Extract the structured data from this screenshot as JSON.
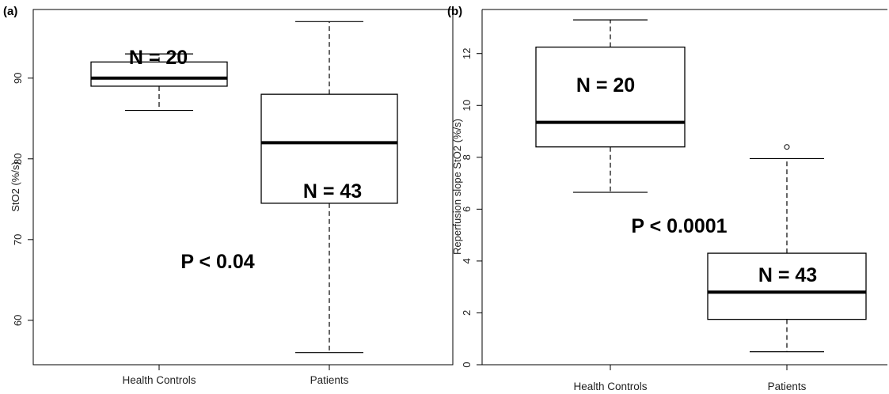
{
  "chart_data": [
    {
      "panel": "(a)",
      "type": "box",
      "ylabel": "StO2 (%/s)",
      "ylim": [
        54.5,
        98.5
      ],
      "yticks": [
        60,
        70,
        80,
        90
      ],
      "grid": false,
      "categories": [
        "Health Controls",
        "Patients"
      ],
      "boxes": [
        {
          "category": "Health Controls",
          "min": 86,
          "q1": 89,
          "median": 90,
          "q3": 92,
          "max": 93,
          "outliers": []
        },
        {
          "category": "Patients",
          "min": 56,
          "q1": 74.5,
          "median": 82,
          "q3": 88,
          "max": 97,
          "outliers": []
        }
      ],
      "annotations": [
        "N = 20",
        "N = 43",
        "P < 0.04"
      ]
    },
    {
      "panel": "(b)",
      "type": "box",
      "ylabel": "Reperfusion slope StO2 (%/s)",
      "ylim": [
        0,
        13.7
      ],
      "yticks": [
        0,
        2,
        4,
        6,
        8,
        10,
        12
      ],
      "grid": false,
      "categories": [
        "Health Controls",
        "Patients"
      ],
      "boxes": [
        {
          "category": "Health Controls",
          "min": 6.65,
          "q1": 8.4,
          "median": 9.35,
          "q3": 12.25,
          "max": 13.3,
          "outliers": []
        },
        {
          "category": "Patients",
          "min": 0.5,
          "q1": 1.75,
          "median": 2.8,
          "q3": 4.3,
          "max": 7.95,
          "outliers": [
            8.4
          ]
        }
      ],
      "annotations": [
        "N = 20",
        "P < 0.0001",
        "N = 43"
      ]
    }
  ]
}
